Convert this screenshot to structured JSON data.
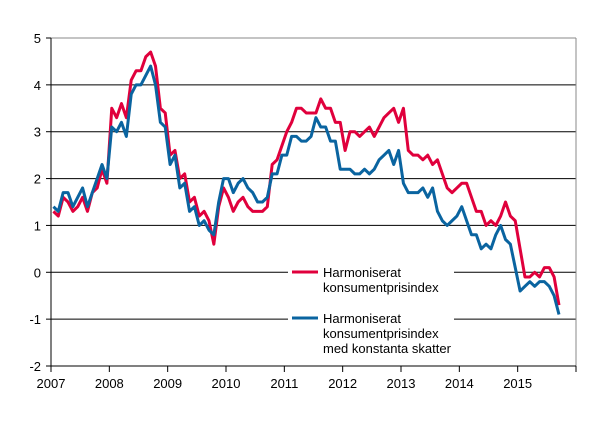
{
  "chart_data": {
    "type": "line",
    "title": "",
    "xlabel": "",
    "ylabel": "",
    "ylim": [
      -2,
      5
    ],
    "xlim": [
      "2007-01",
      "2015-12"
    ],
    "yticks": [
      "5",
      "4",
      "3",
      "2",
      "1",
      "0",
      "-1",
      "-2"
    ],
    "xticks": [
      "2007",
      "2008",
      "2009",
      "2010",
      "2011",
      "2012",
      "2013",
      "2014",
      "2015"
    ],
    "grid": "horizontal",
    "legend_placement": "bottom-center, inside",
    "x_start": "2007-01",
    "frequency": "monthly",
    "series": [
      {
        "name": "Harmoniserat konsumentprisindex",
        "name_lines": [
          "Harmoniserat",
          "konsumentprisindex"
        ],
        "color": "#e0003c",
        "values": [
          1.3,
          1.2,
          1.6,
          1.5,
          1.3,
          1.4,
          1.6,
          1.3,
          1.7,
          1.8,
          2.2,
          1.9,
          3.5,
          3.3,
          3.6,
          3.3,
          4.1,
          4.3,
          4.3,
          4.6,
          4.7,
          4.4,
          3.5,
          3.4,
          2.5,
          2.6,
          2.0,
          2.1,
          1.5,
          1.6,
          1.2,
          1.3,
          1.1,
          0.6,
          1.4,
          1.8,
          1.6,
          1.3,
          1.5,
          1.6,
          1.4,
          1.3,
          1.3,
          1.3,
          1.4,
          2.3,
          2.4,
          2.7,
          3.0,
          3.2,
          3.5,
          3.5,
          3.4,
          3.4,
          3.4,
          3.7,
          3.5,
          3.5,
          3.2,
          3.2,
          2.6,
          3.0,
          3.0,
          2.9,
          3.0,
          3.1,
          2.9,
          3.1,
          3.3,
          3.4,
          3.5,
          3.2,
          3.5,
          2.6,
          2.5,
          2.5,
          2.4,
          2.5,
          2.3,
          2.4,
          2.1,
          1.8,
          1.7,
          1.8,
          1.9,
          1.9,
          1.6,
          1.3,
          1.3,
          1.0,
          1.1,
          1.0,
          1.2,
          1.5,
          1.2,
          1.1,
          0.5,
          -0.1,
          -0.1,
          0.0,
          -0.1,
          0.1,
          0.1,
          -0.1,
          -0.7
        ]
      },
      {
        "name": "Harmoniserat konsumentprisindex med konstanta skatter",
        "name_lines": [
          "Harmoniserat",
          "konsumentprisindex",
          "med konstanta skatter"
        ],
        "color": "#0a64a0",
        "values": [
          1.4,
          1.3,
          1.7,
          1.7,
          1.4,
          1.6,
          1.8,
          1.4,
          1.7,
          2.0,
          2.3,
          2.0,
          3.1,
          3.0,
          3.2,
          2.9,
          3.8,
          4.0,
          4.0,
          4.2,
          4.4,
          4.0,
          3.2,
          3.1,
          2.3,
          2.5,
          1.8,
          1.9,
          1.3,
          1.4,
          1.0,
          1.1,
          0.9,
          0.8,
          1.5,
          2.0,
          2.0,
          1.7,
          1.9,
          2.0,
          1.8,
          1.7,
          1.5,
          1.5,
          1.6,
          2.1,
          2.1,
          2.5,
          2.5,
          2.9,
          2.9,
          2.8,
          2.8,
          2.9,
          3.3,
          3.1,
          3.1,
          2.8,
          2.8,
          2.2,
          2.2,
          2.2,
          2.1,
          2.1,
          2.2,
          2.1,
          2.2,
          2.4,
          2.5,
          2.6,
          2.3,
          2.6,
          1.9,
          1.7,
          1.7,
          1.7,
          1.8,
          1.6,
          1.8,
          1.3,
          1.1,
          1.0,
          1.1,
          1.2,
          1.4,
          1.1,
          0.8,
          0.8,
          0.5,
          0.6,
          0.5,
          0.8,
          1.0,
          0.7,
          0.6,
          0.1,
          -0.4,
          -0.3,
          -0.2,
          -0.3,
          -0.2,
          -0.2,
          -0.3,
          -0.5,
          -0.9
        ]
      }
    ]
  }
}
